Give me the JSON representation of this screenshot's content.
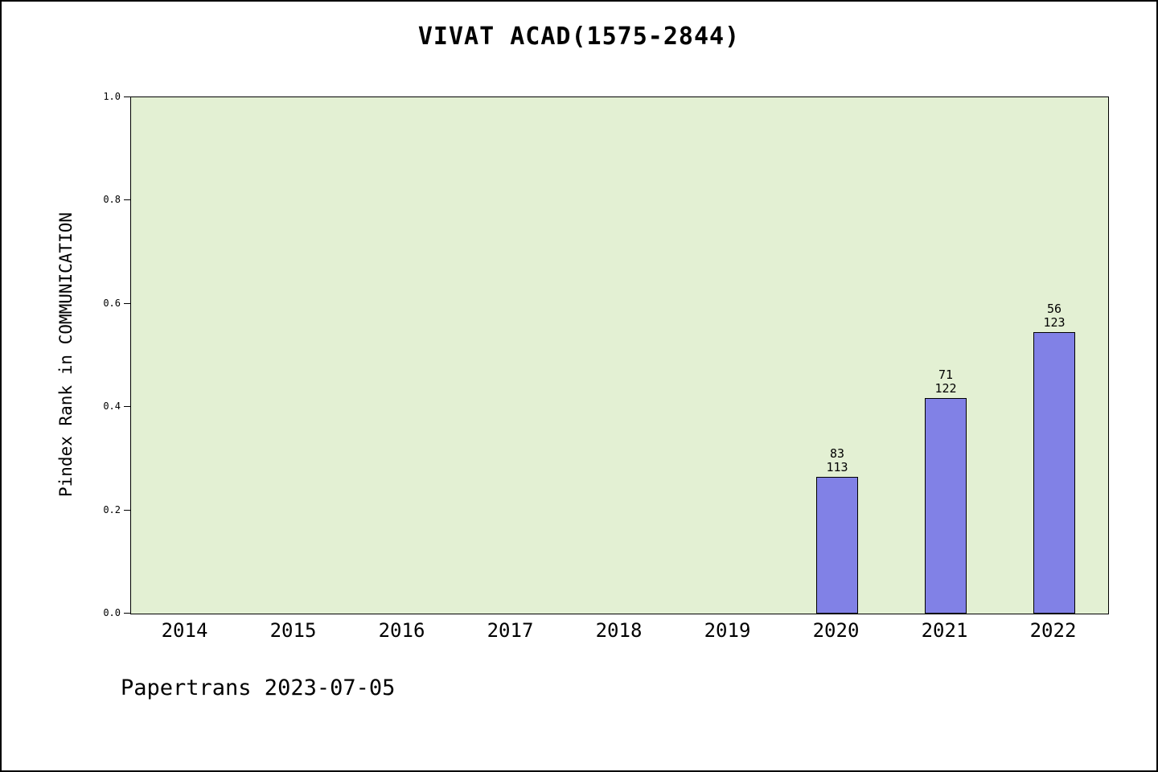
{
  "figure": {
    "title": "VIVAT ACAD(1575-2844)",
    "footer": "Papertrans 2023-07-05"
  },
  "chart_data": {
    "type": "bar",
    "title": "VIVAT ACAD(1575-2844)",
    "xlabel": "",
    "ylabel": "Pindex Rank in COMMUNICATION",
    "categories": [
      "2014",
      "2015",
      "2016",
      "2017",
      "2018",
      "2019",
      "2020",
      "2021",
      "2022"
    ],
    "values": [
      null,
      null,
      null,
      null,
      null,
      null,
      0.265,
      0.418,
      0.545
    ],
    "bar_labels": [
      null,
      null,
      null,
      null,
      null,
      null,
      [
        "83",
        "113"
      ],
      [
        "71",
        "122"
      ],
      [
        "56",
        "123"
      ]
    ],
    "ylim": [
      0,
      1
    ],
    "yticks": [
      "0.0",
      "0.2",
      "0.4",
      "0.6",
      "0.8",
      "1.0"
    ],
    "grid": false,
    "legend": false,
    "colors": {
      "bar_fill": "#8181e6",
      "bar_border": "#000000",
      "plot_bg": "#e3f0d3"
    }
  }
}
